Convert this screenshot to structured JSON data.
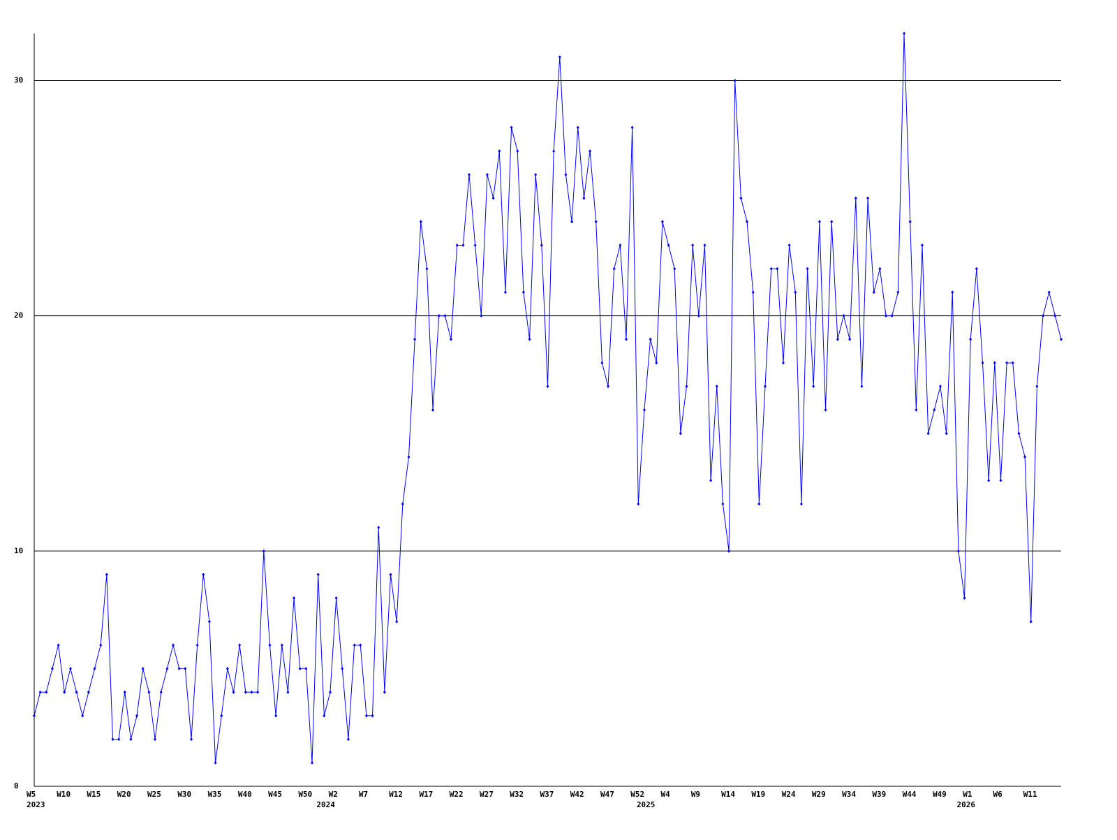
{
  "chart_data": {
    "type": "line",
    "categories": [
      "W5",
      null,
      null,
      null,
      null,
      "W10",
      null,
      null,
      null,
      null,
      "W15",
      null,
      null,
      null,
      null,
      "W20",
      null,
      null,
      null,
      null,
      "W25",
      null,
      null,
      null,
      null,
      "W30",
      null,
      null,
      null,
      null,
      "W35",
      null,
      null,
      null,
      null,
      "W40",
      null,
      null,
      null,
      null,
      "W45",
      null,
      null,
      null,
      null,
      "W50",
      null,
      null,
      null,
      null,
      "W2",
      null,
      null,
      null,
      null,
      "W7",
      null,
      null,
      null,
      null,
      "W12",
      null,
      null,
      null,
      null,
      "W17",
      null,
      null,
      null,
      null,
      "W22",
      null,
      null,
      null,
      null,
      "W27",
      null,
      null,
      null,
      null,
      "W32",
      null,
      null,
      null,
      null,
      "W37",
      null,
      null,
      null,
      null,
      "W42",
      null,
      null,
      null,
      null,
      "W47",
      null,
      null,
      null,
      null,
      "W52",
      null,
      null,
      null,
      null,
      "W4",
      null,
      null,
      null,
      null,
      "W9",
      null,
      null,
      null,
      null,
      "W14",
      null,
      null,
      null,
      null,
      "W19",
      null,
      null,
      null,
      null,
      "W24",
      null,
      null,
      null,
      null,
      "W29",
      null,
      null,
      null,
      null,
      "W34",
      null,
      null,
      null,
      null,
      "W39",
      null,
      null,
      null,
      null,
      "W44",
      null,
      null,
      null,
      null,
      "W49",
      null,
      null,
      null,
      null,
      "W1",
      null,
      null,
      null,
      null,
      "W6",
      null,
      null,
      null,
      null,
      "W11",
      null,
      null,
      null,
      null,
      null
    ],
    "years": [
      "2023",
      null,
      null,
      null,
      null,
      null,
      null,
      null,
      null,
      null,
      null,
      null,
      null,
      null,
      null,
      null,
      null,
      null,
      null,
      null,
      null,
      null,
      null,
      null,
      null,
      null,
      null,
      null,
      null,
      null,
      null,
      null,
      null,
      null,
      null,
      null,
      null,
      null,
      null,
      null,
      null,
      null,
      null,
      null,
      null,
      null,
      null,
      null,
      "2024",
      null,
      null,
      null,
      null,
      null,
      null,
      null,
      null,
      null,
      null,
      null,
      null,
      null,
      null,
      null,
      null,
      null,
      null,
      null,
      null,
      null,
      null,
      null,
      null,
      null,
      null,
      null,
      null,
      null,
      null,
      null,
      null,
      null,
      null,
      null,
      null,
      null,
      null,
      null,
      null,
      null,
      null,
      null,
      null,
      null,
      null,
      null,
      null,
      null,
      null,
      null,
      null,
      "2025",
      null,
      null,
      null,
      null,
      null,
      null,
      null,
      null,
      null,
      null,
      null,
      null,
      null,
      null,
      null,
      null,
      null,
      null,
      null,
      null,
      null,
      null,
      null,
      null,
      null,
      null,
      null,
      null,
      null,
      null,
      null,
      null,
      null,
      null,
      null,
      null,
      null,
      null,
      null,
      null,
      null,
      null,
      null,
      null,
      null,
      null,
      null,
      null,
      null,
      null,
      null,
      null,
      "2026",
      null,
      null,
      null,
      null,
      null,
      null,
      null,
      null,
      null,
      null,
      null,
      null,
      null,
      null,
      null,
      null
    ],
    "series": [
      {
        "color": "#0000ff",
        "values": [
          3,
          4,
          4,
          5,
          6,
          4,
          5,
          4,
          3,
          4,
          5,
          6,
          9,
          2,
          2,
          4,
          2,
          3,
          5,
          4,
          2,
          4,
          5,
          6,
          5,
          5,
          2,
          6,
          9,
          7,
          1,
          3,
          5,
          4,
          6,
          4,
          4,
          4,
          10,
          6,
          3,
          6,
          4,
          8,
          5,
          5,
          1,
          9,
          3,
          4,
          8,
          5,
          2,
          6,
          6,
          3,
          3,
          11,
          4,
          9,
          7,
          12,
          14,
          19,
          24,
          22,
          16,
          20,
          20,
          19,
          23,
          23,
          26,
          23,
          20,
          26,
          25,
          27,
          21,
          28,
          27,
          21,
          19,
          26,
          23,
          17,
          27,
          31,
          26,
          24,
          28,
          25,
          27,
          24,
          18,
          17,
          22,
          23,
          19,
          28,
          12,
          16,
          19,
          18,
          24,
          23,
          22,
          15,
          17,
          23,
          20,
          23,
          13,
          17,
          12,
          10,
          30,
          25,
          24,
          21,
          12,
          17,
          22,
          22,
          18,
          23,
          21,
          12,
          22,
          17,
          24,
          16,
          24,
          19,
          20,
          19,
          25,
          17,
          25,
          21,
          22,
          20,
          20,
          21,
          32,
          24,
          16,
          23,
          15,
          16,
          17,
          15,
          21,
          10,
          8,
          19,
          22,
          18,
          13,
          18,
          13,
          18,
          18,
          15,
          14,
          7,
          17,
          20,
          21,
          20,
          19
        ]
      }
    ],
    "ylim": [
      0,
      32
    ],
    "yticks": [
      0,
      10,
      20,
      30
    ],
    "grid": true
  }
}
